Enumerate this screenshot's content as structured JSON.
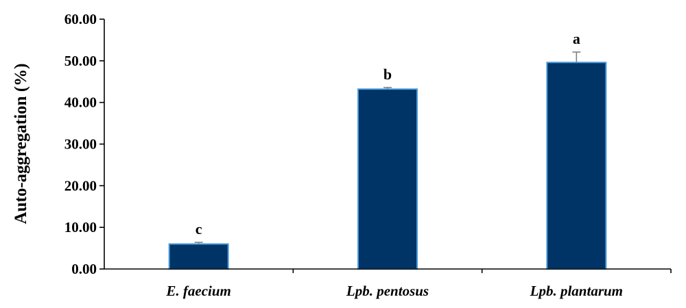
{
  "chart_data": {
    "type": "bar",
    "title": "",
    "xlabel": "",
    "ylabel": "Auto-aggregation (%)",
    "ylim": [
      0,
      60
    ],
    "yticks": [
      "0.00",
      "10.00",
      "20.00",
      "30.00",
      "40.00",
      "50.00",
      "60.00"
    ],
    "categories": [
      "E. faecium",
      "Lpb. pentosus",
      "Lpb. plantarum"
    ],
    "values": [
      6.0,
      43.2,
      49.6
    ],
    "errors": [
      0.4,
      0.4,
      2.5
    ],
    "significance": [
      "c",
      "b",
      "a"
    ],
    "bar_color": "#003366",
    "bar_edge_color": "#4a9ad8",
    "error_color": "#808080",
    "grid": false,
    "legend": "none"
  }
}
